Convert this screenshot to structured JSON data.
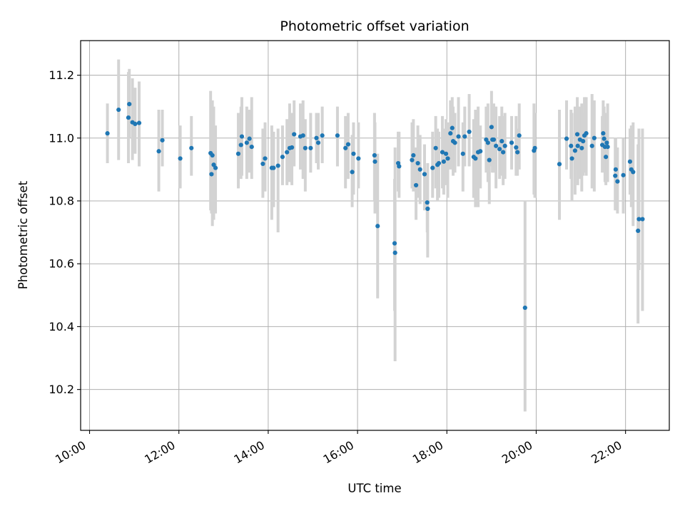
{
  "chart_data": {
    "type": "scatter",
    "title": "Photometric offset variation",
    "xlabel": "UTC time",
    "ylabel": "Photometric offset",
    "x_unit": "hours UTC",
    "xlim": [
      9.8,
      22.98
    ],
    "ylim": [
      10.07,
      11.31
    ],
    "x_ticks": [
      10,
      12,
      14,
      16,
      18,
      20,
      22
    ],
    "x_tick_labels": [
      "10:00",
      "12:00",
      "14:00",
      "16:00",
      "18:00",
      "20:00",
      "22:00"
    ],
    "y_ticks": [
      10.2,
      10.4,
      10.6,
      10.8,
      11.0,
      11.2
    ],
    "y_tick_labels": [
      "10.2",
      "10.4",
      "10.6",
      "10.8",
      "11.0",
      "11.2"
    ],
    "grid": true,
    "point_color": "#1f77b4",
    "errorbar_color": "#d3d3d3",
    "points": [
      {
        "x": 10.4,
        "y": 11.015,
        "lo": 10.92,
        "hi": 11.11
      },
      {
        "x": 10.65,
        "y": 11.09,
        "lo": 10.93,
        "hi": 11.25
      },
      {
        "x": 10.87,
        "y": 11.065,
        "lo": 10.92,
        "hi": 11.21
      },
      {
        "x": 10.89,
        "y": 11.108,
        "lo": 11.0,
        "hi": 11.22
      },
      {
        "x": 10.96,
        "y": 11.05,
        "lo": 10.93,
        "hi": 11.19
      },
      {
        "x": 11.02,
        "y": 11.045,
        "lo": 10.95,
        "hi": 11.16
      },
      {
        "x": 11.11,
        "y": 11.048,
        "lo": 10.91,
        "hi": 11.18
      },
      {
        "x": 11.55,
        "y": 10.958,
        "lo": 10.83,
        "hi": 11.09
      },
      {
        "x": 11.63,
        "y": 10.993,
        "lo": 10.91,
        "hi": 11.09
      },
      {
        "x": 12.03,
        "y": 10.935,
        "lo": 10.84,
        "hi": 11.04
      },
      {
        "x": 12.28,
        "y": 10.968,
        "lo": 10.88,
        "hi": 11.07
      },
      {
        "x": 12.71,
        "y": 10.952,
        "lo": 10.77,
        "hi": 11.15
      },
      {
        "x": 12.73,
        "y": 10.885,
        "lo": 10.76,
        "hi": 11.02
      },
      {
        "x": 12.75,
        "y": 10.945,
        "lo": 10.72,
        "hi": 11.12
      },
      {
        "x": 12.78,
        "y": 10.915,
        "lo": 10.74,
        "hi": 11.1
      },
      {
        "x": 12.82,
        "y": 10.905,
        "lo": 10.76,
        "hi": 11.04
      },
      {
        "x": 13.33,
        "y": 10.95,
        "lo": 10.84,
        "hi": 11.08
      },
      {
        "x": 13.39,
        "y": 10.978,
        "lo": 10.87,
        "hi": 11.1
      },
      {
        "x": 13.41,
        "y": 11.005,
        "lo": 10.88,
        "hi": 11.13
      },
      {
        "x": 13.52,
        "y": 10.985,
        "lo": 10.87,
        "hi": 11.1
      },
      {
        "x": 13.58,
        "y": 10.998,
        "lo": 10.89,
        "hi": 11.09
      },
      {
        "x": 13.63,
        "y": 10.972,
        "lo": 10.87,
        "hi": 11.13
      },
      {
        "x": 13.88,
        "y": 10.918,
        "lo": 10.81,
        "hi": 11.03
      },
      {
        "x": 13.93,
        "y": 10.935,
        "lo": 10.83,
        "hi": 11.05
      },
      {
        "x": 14.08,
        "y": 10.905,
        "lo": 10.74,
        "hi": 11.04
      },
      {
        "x": 14.12,
        "y": 10.905,
        "lo": 10.78,
        "hi": 11.02
      },
      {
        "x": 14.22,
        "y": 10.912,
        "lo": 10.7,
        "hi": 11.03
      },
      {
        "x": 14.32,
        "y": 10.94,
        "lo": 10.85,
        "hi": 11.04
      },
      {
        "x": 14.42,
        "y": 10.955,
        "lo": 10.85,
        "hi": 11.06
      },
      {
        "x": 14.48,
        "y": 10.968,
        "lo": 10.86,
        "hi": 11.11
      },
      {
        "x": 14.53,
        "y": 10.97,
        "lo": 10.85,
        "hi": 11.08
      },
      {
        "x": 14.58,
        "y": 11.012,
        "lo": 10.91,
        "hi": 11.12
      },
      {
        "x": 14.72,
        "y": 11.005,
        "lo": 10.9,
        "hi": 11.11
      },
      {
        "x": 14.78,
        "y": 11.008,
        "lo": 10.87,
        "hi": 11.12
      },
      {
        "x": 14.83,
        "y": 10.968,
        "lo": 10.83,
        "hi": 11.06
      },
      {
        "x": 14.95,
        "y": 10.968,
        "lo": 10.89,
        "hi": 11.08
      },
      {
        "x": 15.08,
        "y": 11.0,
        "lo": 10.92,
        "hi": 11.08
      },
      {
        "x": 15.12,
        "y": 10.985,
        "lo": 10.9,
        "hi": 11.08
      },
      {
        "x": 15.21,
        "y": 11.008,
        "lo": 10.92,
        "hi": 11.1
      },
      {
        "x": 15.55,
        "y": 11.008,
        "lo": 10.91,
        "hi": 11.1
      },
      {
        "x": 15.73,
        "y": 10.968,
        "lo": 10.84,
        "hi": 11.07
      },
      {
        "x": 15.79,
        "y": 10.98,
        "lo": 10.87,
        "hi": 11.08
      },
      {
        "x": 15.88,
        "y": 10.892,
        "lo": 10.78,
        "hi": 11.01
      },
      {
        "x": 15.91,
        "y": 10.95,
        "lo": 10.82,
        "hi": 11.05
      },
      {
        "x": 16.02,
        "y": 10.935,
        "lo": 10.84,
        "hi": 11.05
      },
      {
        "x": 16.38,
        "y": 10.945,
        "lo": 10.8,
        "hi": 11.08
      },
      {
        "x": 16.39,
        "y": 10.925,
        "lo": 10.76,
        "hi": 11.05
      },
      {
        "x": 16.45,
        "y": 10.72,
        "lo": 10.49,
        "hi": 10.95
      },
      {
        "x": 16.83,
        "y": 10.665,
        "lo": 10.45,
        "hi": 10.87
      },
      {
        "x": 16.84,
        "y": 10.635,
        "lo": 10.29,
        "hi": 10.97
      },
      {
        "x": 16.91,
        "y": 10.92,
        "lo": 10.83,
        "hi": 11.02
      },
      {
        "x": 16.93,
        "y": 10.91,
        "lo": 10.81,
        "hi": 11.02
      },
      {
        "x": 17.22,
        "y": 10.93,
        "lo": 10.84,
        "hi": 11.05
      },
      {
        "x": 17.25,
        "y": 10.945,
        "lo": 10.83,
        "hi": 11.06
      },
      {
        "x": 17.31,
        "y": 10.85,
        "lo": 10.74,
        "hi": 10.97
      },
      {
        "x": 17.35,
        "y": 10.92,
        "lo": 10.81,
        "hi": 11.04
      },
      {
        "x": 17.4,
        "y": 10.9,
        "lo": 10.79,
        "hi": 11.01
      },
      {
        "x": 17.5,
        "y": 10.885,
        "lo": 10.77,
        "hi": 10.98
      },
      {
        "x": 17.56,
        "y": 10.795,
        "lo": 10.7,
        "hi": 10.89
      },
      {
        "x": 17.57,
        "y": 10.775,
        "lo": 10.62,
        "hi": 10.92
      },
      {
        "x": 17.68,
        "y": 10.905,
        "lo": 10.81,
        "hi": 11.02
      },
      {
        "x": 17.75,
        "y": 10.968,
        "lo": 10.84,
        "hi": 11.07
      },
      {
        "x": 17.79,
        "y": 10.915,
        "lo": 10.8,
        "hi": 11.03
      },
      {
        "x": 17.82,
        "y": 10.92,
        "lo": 10.81,
        "hi": 11.02
      },
      {
        "x": 17.9,
        "y": 10.955,
        "lo": 10.84,
        "hi": 11.07
      },
      {
        "x": 17.93,
        "y": 10.925,
        "lo": 10.82,
        "hi": 11.03
      },
      {
        "x": 17.98,
        "y": 10.95,
        "lo": 10.85,
        "hi": 11.06
      },
      {
        "x": 18.02,
        "y": 10.935,
        "lo": 10.81,
        "hi": 11.05
      },
      {
        "x": 18.08,
        "y": 11.015,
        "lo": 10.9,
        "hi": 11.12
      },
      {
        "x": 18.12,
        "y": 11.032,
        "lo": 10.93,
        "hi": 11.13
      },
      {
        "x": 18.14,
        "y": 10.99,
        "lo": 10.88,
        "hi": 11.1
      },
      {
        "x": 18.18,
        "y": 10.985,
        "lo": 10.89,
        "hi": 11.08
      },
      {
        "x": 18.26,
        "y": 11.005,
        "lo": 10.91,
        "hi": 11.13
      },
      {
        "x": 18.36,
        "y": 10.95,
        "lo": 10.83,
        "hi": 11.05
      },
      {
        "x": 18.4,
        "y": 11.005,
        "lo": 10.91,
        "hi": 11.1
      },
      {
        "x": 18.5,
        "y": 11.02,
        "lo": 10.91,
        "hi": 11.14
      },
      {
        "x": 18.6,
        "y": 10.94,
        "lo": 10.81,
        "hi": 11.06
      },
      {
        "x": 18.64,
        "y": 10.935,
        "lo": 10.78,
        "hi": 11.09
      },
      {
        "x": 18.7,
        "y": 10.955,
        "lo": 10.78,
        "hi": 11.1
      },
      {
        "x": 18.75,
        "y": 10.958,
        "lo": 10.84,
        "hi": 11.04
      },
      {
        "x": 18.88,
        "y": 10.995,
        "lo": 10.89,
        "hi": 11.1
      },
      {
        "x": 18.92,
        "y": 10.985,
        "lo": 10.86,
        "hi": 11.11
      },
      {
        "x": 18.95,
        "y": 10.93,
        "lo": 10.79,
        "hi": 11.03
      },
      {
        "x": 19.0,
        "y": 11.035,
        "lo": 10.91,
        "hi": 11.15
      },
      {
        "x": 19.02,
        "y": 10.995,
        "lo": 10.89,
        "hi": 11.1
      },
      {
        "x": 19.05,
        "y": 10.995,
        "lo": 10.89,
        "hi": 11.11
      },
      {
        "x": 19.1,
        "y": 10.975,
        "lo": 10.84,
        "hi": 11.1
      },
      {
        "x": 19.18,
        "y": 10.965,
        "lo": 10.87,
        "hi": 11.07
      },
      {
        "x": 19.23,
        "y": 10.99,
        "lo": 10.88,
        "hi": 11.1
      },
      {
        "x": 19.26,
        "y": 10.955,
        "lo": 10.85,
        "hi": 11.07
      },
      {
        "x": 19.3,
        "y": 10.975,
        "lo": 10.87,
        "hi": 11.08
      },
      {
        "x": 19.45,
        "y": 10.985,
        "lo": 10.9,
        "hi": 11.07
      },
      {
        "x": 19.55,
        "y": 10.97,
        "lo": 10.88,
        "hi": 11.07
      },
      {
        "x": 19.58,
        "y": 10.955,
        "lo": 10.88,
        "hi": 11.03
      },
      {
        "x": 19.62,
        "y": 11.008,
        "lo": 10.9,
        "hi": 11.11
      },
      {
        "x": 19.75,
        "y": 10.46,
        "lo": 10.13,
        "hi": 10.8
      },
      {
        "x": 19.95,
        "y": 10.96,
        "lo": 10.82,
        "hi": 11.11
      },
      {
        "x": 19.97,
        "y": 10.968,
        "lo": 10.81,
        "hi": 11.08
      },
      {
        "x": 20.52,
        "y": 10.917,
        "lo": 10.74,
        "hi": 11.09
      },
      {
        "x": 20.68,
        "y": 10.998,
        "lo": 10.9,
        "hi": 11.12
      },
      {
        "x": 20.78,
        "y": 10.975,
        "lo": 10.87,
        "hi": 11.09
      },
      {
        "x": 20.8,
        "y": 10.935,
        "lo": 10.8,
        "hi": 11.08
      },
      {
        "x": 20.87,
        "y": 10.96,
        "lo": 10.82,
        "hi": 11.1
      },
      {
        "x": 20.92,
        "y": 11.012,
        "lo": 10.9,
        "hi": 11.13
      },
      {
        "x": 20.93,
        "y": 10.975,
        "lo": 10.85,
        "hi": 11.1
      },
      {
        "x": 20.98,
        "y": 10.995,
        "lo": 10.87,
        "hi": 11.1
      },
      {
        "x": 21.02,
        "y": 10.968,
        "lo": 10.83,
        "hi": 11.11
      },
      {
        "x": 21.05,
        "y": 10.99,
        "lo": 10.88,
        "hi": 11.08
      },
      {
        "x": 21.08,
        "y": 11.008,
        "lo": 10.89,
        "hi": 11.13
      },
      {
        "x": 21.12,
        "y": 11.015,
        "lo": 10.88,
        "hi": 11.13
      },
      {
        "x": 21.25,
        "y": 10.975,
        "lo": 10.84,
        "hi": 11.14
      },
      {
        "x": 21.3,
        "y": 11.0,
        "lo": 10.83,
        "hi": 11.12
      },
      {
        "x": 21.48,
        "y": 10.978,
        "lo": 10.89,
        "hi": 11.07
      },
      {
        "x": 21.5,
        "y": 11.015,
        "lo": 10.91,
        "hi": 11.12
      },
      {
        "x": 21.52,
        "y": 10.998,
        "lo": 10.91,
        "hi": 11.1
      },
      {
        "x": 21.54,
        "y": 10.972,
        "lo": 10.86,
        "hi": 11.08
      },
      {
        "x": 21.56,
        "y": 10.94,
        "lo": 10.85,
        "hi": 11.04
      },
      {
        "x": 21.58,
        "y": 10.985,
        "lo": 10.89,
        "hi": 11.08
      },
      {
        "x": 21.6,
        "y": 10.972,
        "lo": 10.86,
        "hi": 11.11
      },
      {
        "x": 21.77,
        "y": 10.88,
        "lo": 10.77,
        "hi": 11.0
      },
      {
        "x": 21.78,
        "y": 10.9,
        "lo": 10.8,
        "hi": 11.0
      },
      {
        "x": 21.82,
        "y": 10.862,
        "lo": 10.76,
        "hi": 10.97
      },
      {
        "x": 21.95,
        "y": 10.882,
        "lo": 10.76,
        "hi": 11.0
      },
      {
        "x": 22.1,
        "y": 10.925,
        "lo": 10.82,
        "hi": 11.03
      },
      {
        "x": 22.13,
        "y": 10.9,
        "lo": 10.78,
        "hi": 11.04
      },
      {
        "x": 22.17,
        "y": 10.892,
        "lo": 10.72,
        "hi": 11.05
      },
      {
        "x": 22.28,
        "y": 10.705,
        "lo": 10.41,
        "hi": 10.98
      },
      {
        "x": 22.3,
        "y": 10.742,
        "lo": 10.58,
        "hi": 11.03
      },
      {
        "x": 22.38,
        "y": 10.742,
        "lo": 10.45,
        "hi": 11.03
      }
    ]
  }
}
